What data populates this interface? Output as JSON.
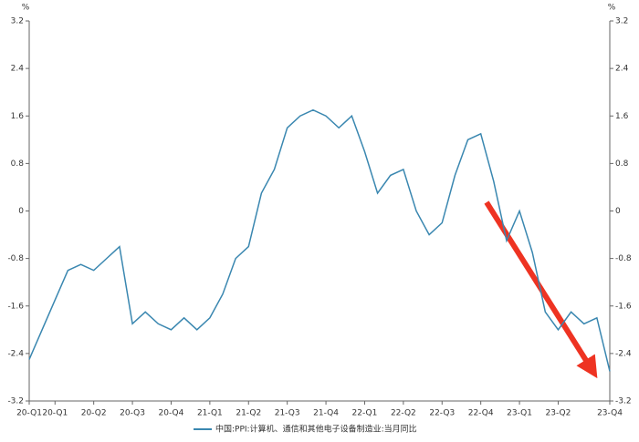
{
  "chart_data": {
    "type": "line",
    "y_unit": "%",
    "y2_unit": "%",
    "categories": [
      "20-Q1",
      null,
      "20-Q1",
      null,
      null,
      "20-Q2",
      null,
      null,
      "20-Q3",
      null,
      null,
      "20-Q4",
      null,
      null,
      "21-Q1",
      null,
      null,
      "21-Q2",
      null,
      null,
      "21-Q3",
      null,
      null,
      "21-Q4",
      null,
      null,
      "22-Q1",
      null,
      null,
      "22-Q2",
      null,
      null,
      "22-Q3",
      null,
      null,
      "22-Q4",
      null,
      null,
      "23-Q1",
      null,
      null,
      "23-Q2",
      null,
      null,
      null,
      "23-Q4"
    ],
    "series": [
      {
        "name": "中国:PPI:计算机、通信和其他电子设备制造业:当月同比",
        "color": "#3a87b0",
        "values": [
          -2.5,
          -2.0,
          -1.5,
          -1.0,
          -0.9,
          -1.0,
          -0.8,
          -0.6,
          -1.9,
          -1.7,
          -1.9,
          -2.0,
          -1.8,
          -2.0,
          -1.8,
          -1.4,
          -0.8,
          -0.6,
          0.3,
          0.7,
          1.4,
          1.6,
          1.7,
          1.6,
          1.4,
          1.6,
          1.0,
          0.3,
          0.6,
          0.7,
          0.0,
          -0.4,
          -0.2,
          0.6,
          1.2,
          1.3,
          0.5,
          -0.5,
          0.0,
          -0.7,
          -1.7,
          -2.0,
          -1.7,
          -1.9,
          -1.8,
          -2.7
        ]
      }
    ],
    "ylim": [
      -3.2,
      3.2
    ],
    "yticks": [
      3.2,
      2.4,
      1.6,
      0.8,
      0,
      -0.8,
      -1.6,
      -2.4,
      -3.2
    ],
    "y2lim": [
      -3.2,
      3.2
    ],
    "y2ticks": [
      3.2,
      2.4,
      1.6,
      0.8,
      0,
      -0.8,
      -1.6,
      -2.4,
      -3.2
    ],
    "grid": false
  }
}
